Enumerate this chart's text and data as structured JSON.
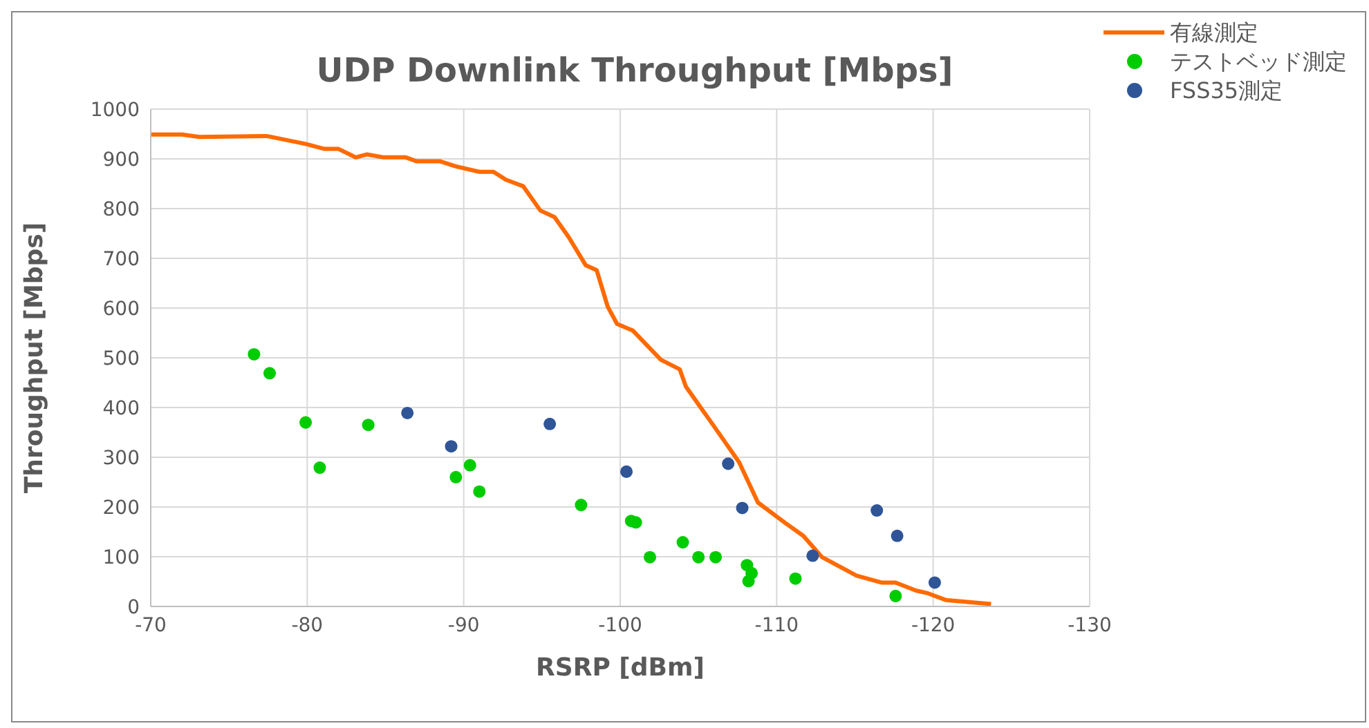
{
  "chart_data": {
    "type": "scatter",
    "title": "UDP Downlink Throughput [Mbps]",
    "xlabel": "RSRP [dBm]",
    "ylabel": "Throughput [Mbps]",
    "xlim": [
      -70,
      -130
    ],
    "xticks": [
      -70,
      -80,
      -90,
      -100,
      -110,
      -120,
      -130
    ],
    "ylim": [
      0,
      1000
    ],
    "yticks": [
      0,
      100,
      200,
      300,
      400,
      500,
      600,
      700,
      800,
      900,
      1000
    ],
    "grid": true,
    "legend": "top right",
    "marker": "circle",
    "series": [
      {
        "name": "有線測定",
        "type": "line",
        "marker": "none",
        "color": "#ff6a00",
        "line_style": "solid",
        "x": [
          -70,
          -72,
          -73.1,
          -77.4,
          -79.9,
          -81.1,
          -82,
          -83.1,
          -83.8,
          -84.9,
          -86.3,
          -87,
          -88.5,
          -89.5,
          -91,
          -91.9,
          -92.7,
          -93.8,
          -94.9,
          -95.8,
          -96.7,
          -97.8,
          -98.5,
          -99.2,
          -99.8,
          -100.8,
          -102.6,
          -103.8,
          -104.2,
          -106,
          -107.6,
          -108.8,
          -110.5,
          -111.7,
          -112.9,
          -115.1,
          -116.7,
          -117.6,
          -118.9,
          -119.6,
          -120.8,
          -123.7
        ],
        "values": [
          949,
          949,
          944,
          946,
          930,
          920,
          920,
          903,
          909,
          903,
          903,
          895,
          895,
          885,
          874,
          874,
          858,
          845,
          796,
          783,
          743,
          686,
          676,
          603,
          568,
          555,
          496,
          477,
          442,
          362,
          290,
          209,
          169,
          142,
          99,
          62,
          48,
          48,
          32,
          27,
          13,
          5
        ]
      },
      {
        "name": "テストベッド測定",
        "color": "#00cc00",
        "x": [
          -76.6,
          -77.6,
          -79.9,
          -80.8,
          -83.9,
          -89.5,
          -90.4,
          -91,
          -97.5,
          -100.7,
          -101,
          -101.9,
          -104,
          -105,
          -106.1,
          -108.1,
          -108.4,
          -108.2,
          -111.2,
          -117.6
        ],
        "values": [
          507,
          469,
          370,
          279,
          365,
          260,
          284,
          231,
          204,
          172,
          169,
          99,
          129,
          99,
          99,
          83,
          67,
          51,
          56,
          21
        ]
      },
      {
        "name": "FSS35測定",
        "color": "#2f5597",
        "x": [
          -86.4,
          -89.2,
          -95.5,
          -100.4,
          -106.9,
          -107.8,
          -112.3,
          -116.4,
          -117.7,
          -120.1
        ],
        "values": [
          389,
          322,
          367,
          271,
          287,
          198,
          102,
          193,
          142,
          48
        ]
      }
    ]
  }
}
